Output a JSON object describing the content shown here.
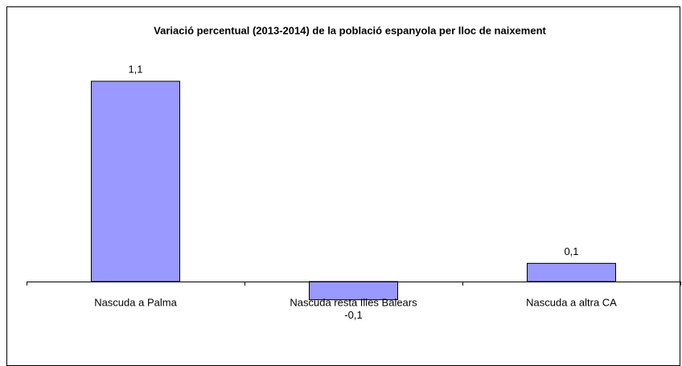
{
  "chart_data": {
    "type": "bar",
    "title": "Variació percentual (2013-2014) de la població espanyola per lloc de naixement",
    "categories": [
      "Nascuda a Palma",
      "Nascuda resta Illes Balears",
      "Nascuda a altra CA"
    ],
    "values": [
      1.1,
      -0.1,
      0.1
    ],
    "value_labels": [
      "1,1",
      "-0,1",
      "0,1"
    ],
    "color": "#9999ff"
  }
}
